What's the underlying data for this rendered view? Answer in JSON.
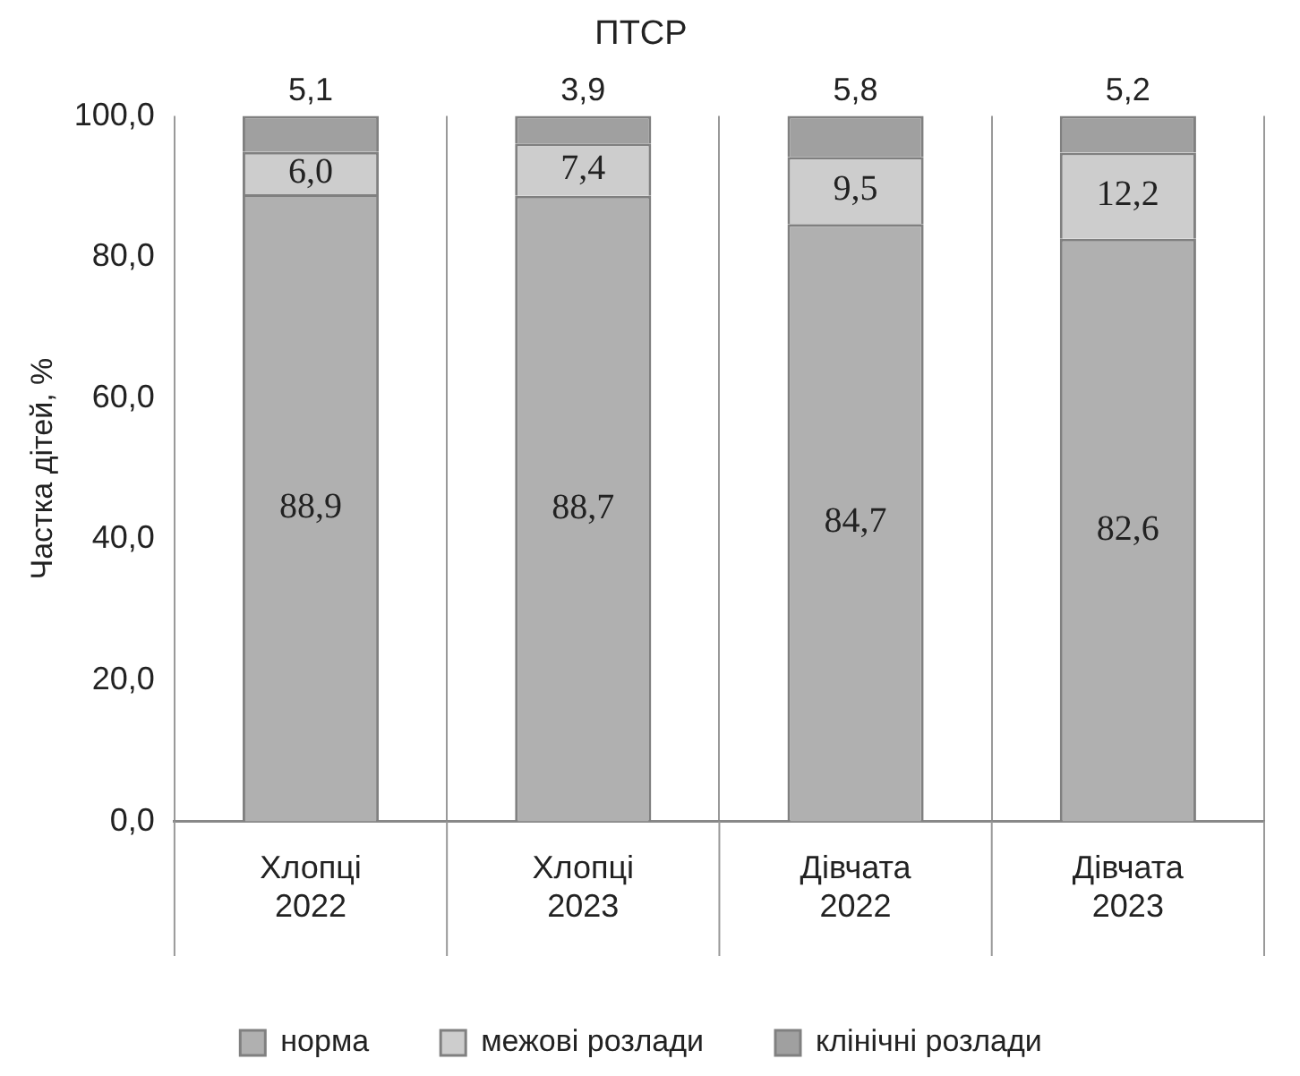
{
  "chart_data": {
    "type": "bar",
    "title": "ПТСР",
    "ylabel": "Частка дітей, %",
    "stacked": true,
    "categories": [
      "Хлопці 2022",
      "Хлопці 2023",
      "Дівчата 2022",
      "Дівчата 2023"
    ],
    "series": [
      {
        "name": "норма",
        "color": "#b0b0b0",
        "values": [
          88.9,
          88.7,
          84.7,
          82.6
        ],
        "value_labels": [
          "88,9",
          "88,7",
          "84,7",
          "82,6"
        ]
      },
      {
        "name": "межові розлади",
        "color": "#cdcdcd",
        "values": [
          6.0,
          7.4,
          9.5,
          12.2
        ],
        "value_labels": [
          "6,0",
          "7,4",
          "9,5",
          "12,2"
        ]
      },
      {
        "name": "клінічні розлади",
        "color": "#a0a0a0",
        "values": [
          5.1,
          3.9,
          5.8,
          5.2
        ],
        "value_labels": [
          "5,1",
          "3,9",
          "5,8",
          "5,2"
        ]
      }
    ],
    "ylim": [
      0,
      100
    ],
    "yticks": [
      {
        "value": 0,
        "label": "0,0"
      },
      {
        "value": 20,
        "label": "20,0"
      },
      {
        "value": 40,
        "label": "40,0"
      },
      {
        "value": 60,
        "label": "60,0"
      },
      {
        "value": 80,
        "label": "80,0"
      },
      {
        "value": 100,
        "label": "100,0"
      }
    ],
    "grid": "x",
    "legend": "bottom"
  }
}
